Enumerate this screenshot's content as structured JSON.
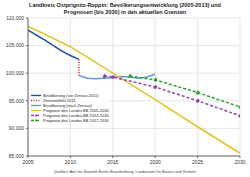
{
  "chart_data": {
    "type": "line",
    "title": "Landkreis Ostprignitz-Ruppin:  Bevölkerungsentwicklung (2005-2013) und Prognosen (bis 2030) in den aktuellen Grenzen",
    "source": "Quellen: Amt für Statistik Berlin-Brandenburg, Landesamt für Bauen und Verkehr",
    "xlim": [
      2005,
      2030
    ],
    "xticks": [
      2005,
      2010,
      2015,
      2020,
      2025,
      2030
    ],
    "ylim": [
      85000,
      110000
    ],
    "yticks": [
      {
        "value": 85000,
        "label": "85.000"
      },
      {
        "value": 90000,
        "label": "90.000"
      },
      {
        "value": 95000,
        "label": "95.000"
      },
      {
        "value": 100000,
        "label": "100.000"
      },
      {
        "value": 105000,
        "label": "105.000"
      },
      {
        "value": 110000,
        "label": "110.000"
      }
    ],
    "grid": true,
    "legend": "left",
    "series": [
      {
        "name": "Bevölkerung (vor Zensus 2011)",
        "color": "#1f4e9c",
        "line_style": "solid",
        "marker": "none",
        "x": [
          2005,
          2006,
          2007,
          2008,
          2009,
          2010,
          2011
        ],
        "values": [
          107800,
          106900,
          106000,
          105000,
          104000,
          103200,
          102500
        ]
      },
      {
        "name": "Zensuseffekt 2011",
        "color": "#d62728",
        "line_style": "dotted",
        "marker": "none",
        "x": [
          2011,
          2011
        ],
        "values": [
          102500,
          99600
        ]
      },
      {
        "name": "Bevölkerung (nach Zensus)",
        "color": "#5b9bd5",
        "line_style": "solid",
        "marker": "none",
        "x": [
          2011,
          2012,
          2013,
          2014,
          2015,
          2016,
          2017,
          2018,
          2019,
          2020
        ],
        "values": [
          99600,
          99100,
          99000,
          99100,
          99200,
          99400,
          99300,
          99100,
          99300,
          99800
        ]
      },
      {
        "name": "Prognose des Landes BB 2005-2030",
        "color": "#e6c229",
        "line_style": "solid",
        "marker": "none",
        "x": [
          2005,
          2010,
          2015,
          2020,
          2025,
          2030
        ],
        "values": [
          108500,
          104800,
          100000,
          95200,
          90300,
          85500
        ]
      },
      {
        "name": "Prognose des Landes BB 2014-2030",
        "color": "#8e44ad",
        "line_style": "dashed",
        "marker": "circle",
        "x": [
          2014,
          2015,
          2020,
          2025,
          2030
        ],
        "values": [
          99500,
          99300,
          97500,
          95000,
          92300
        ]
      },
      {
        "name": "Prognose des Landes BB 2017-2030",
        "color": "#2ca02c",
        "line_style": "dashed",
        "marker": "circle",
        "x": [
          2017,
          2020,
          2025,
          2030
        ],
        "values": [
          99500,
          98800,
          96500,
          93900
        ]
      }
    ]
  }
}
